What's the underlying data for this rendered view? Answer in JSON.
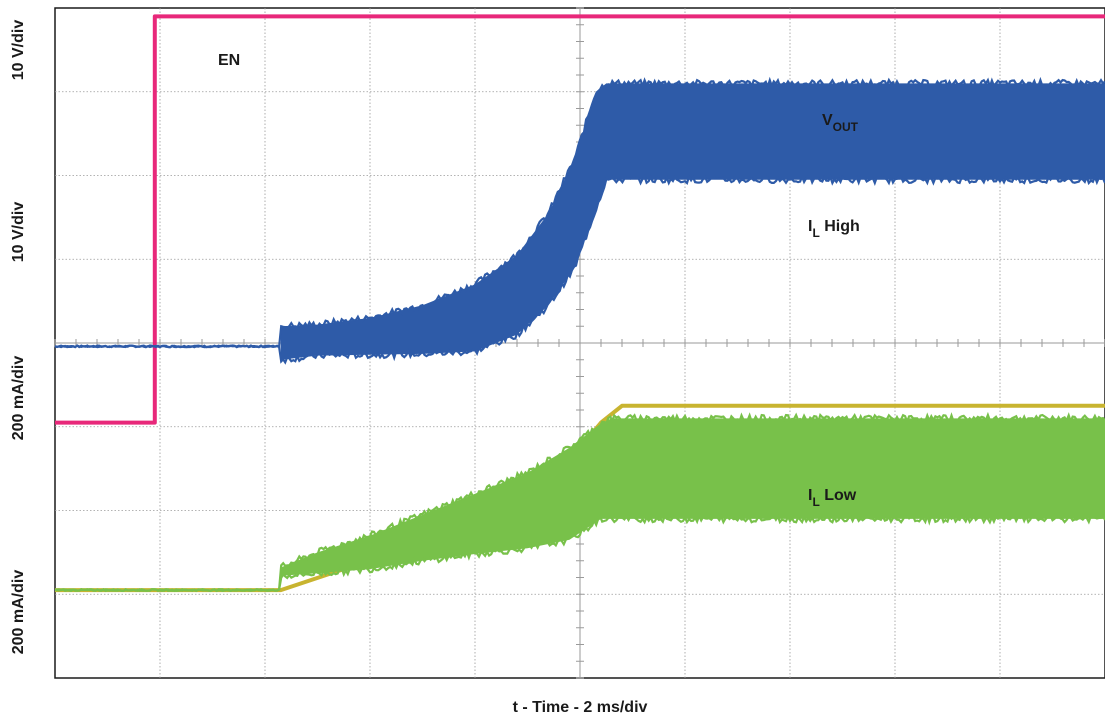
{
  "chart_data": {
    "type": "line",
    "title": "",
    "xlabel": "t - Time - 2 ms/div",
    "x_unit": "ms",
    "xlim": [
      0,
      20
    ],
    "grid": true,
    "y_axis_labels": [
      "10 V/div",
      "10 V/div",
      "200 mA/div",
      "200 mA/div"
    ],
    "annotations": [
      {
        "main": "EN",
        "sub": ""
      },
      {
        "main": "V",
        "sub": "OUT"
      },
      {
        "main": "I",
        "sub": "L",
        "suffix": " High"
      },
      {
        "main": "I",
        "sub": "L",
        "suffix": " Low"
      }
    ],
    "series": [
      {
        "name": "EN",
        "color": "#e8287a",
        "style": "step",
        "x": [
          0,
          1.9,
          1.9,
          20
        ],
        "y": [
          -0.95,
          -0.95,
          3.9,
          3.9
        ]
      },
      {
        "name": "VOUT",
        "color": "#c8b430",
        "style": "line",
        "x": [
          0,
          4.3,
          5.5,
          6.5,
          7.5,
          8.3,
          9.0,
          9.6,
          10.0,
          10.4,
          10.8,
          20
        ],
        "y": [
          -2.95,
          -2.95,
          -2.7,
          -2.5,
          -2.3,
          -2.07,
          -1.8,
          -1.5,
          -1.25,
          -0.95,
          -0.75,
          -0.75
        ]
      },
      {
        "name": "IL High",
        "color": "#2e5ba8",
        "style": "envelope",
        "x": [
          0,
          4.3,
          4.3,
          5.0,
          6.0,
          7.0,
          8.0,
          8.8,
          9.4,
          9.9,
          10.3,
          10.5,
          20
        ],
        "upper": [
          -0.04,
          -0.04,
          0.2,
          0.22,
          0.3,
          0.45,
          0.7,
          1.05,
          1.55,
          2.2,
          3.0,
          3.1,
          3.1
        ],
        "lower": [
          -0.04,
          -0.04,
          -0.2,
          -0.15,
          -0.14,
          -0.13,
          -0.1,
          0.1,
          0.45,
          0.9,
          1.6,
          1.95,
          1.95
        ]
      },
      {
        "name": "IL Low",
        "color": "#78c14a",
        "style": "envelope",
        "x": [
          0,
          4.3,
          4.3,
          5.0,
          6.0,
          7.0,
          8.0,
          9.0,
          9.8,
          10.4,
          10.6,
          20
        ],
        "upper": [
          -2.95,
          -2.95,
          -2.68,
          -2.5,
          -2.3,
          -2.05,
          -1.8,
          -1.55,
          -1.25,
          -0.96,
          -0.9,
          -0.9
        ],
        "lower": [
          -2.95,
          -2.95,
          -2.78,
          -2.75,
          -2.7,
          -2.6,
          -2.52,
          -2.45,
          -2.35,
          -2.1,
          -2.1,
          -2.1
        ]
      }
    ]
  },
  "colors": {
    "border": "#1a1a1a",
    "grid": "#9a9a9a"
  }
}
